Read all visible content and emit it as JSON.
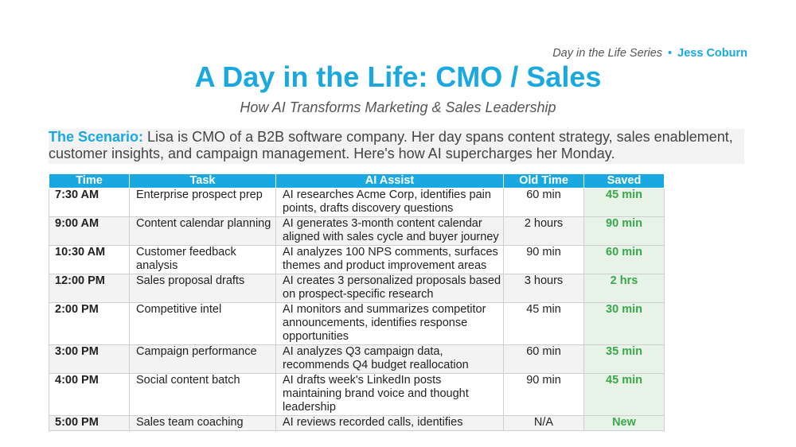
{
  "header": {
    "series": "Day in the Life Series",
    "separator": "•",
    "author": "Jess Coburn",
    "title": "A Day in the Life: CMO / Sales",
    "subtitle": "How AI Transforms Marketing & Sales Leadership"
  },
  "scenario": {
    "label": "The Scenario:",
    "text": "Lisa is CMO of a B2B software company. Her day spans content strategy, sales enablement, customer insights, and campaign management. Here's how AI supercharges her Monday."
  },
  "table": {
    "headers": [
      "Time",
      "Task",
      "AI Assist",
      "Old Time",
      "Saved"
    ],
    "rows": [
      {
        "time": "7:30 AM",
        "task": "Enterprise prospect prep",
        "assist": "AI researches Acme Corp, identifies pain points, drafts discovery questions",
        "old": "60 min",
        "saved": "45 min"
      },
      {
        "time": "9:00 AM",
        "task": "Content calendar planning",
        "assist": "AI generates 3-month content calendar aligned with sales cycle and buyer journey",
        "old": "2 hours",
        "saved": "90 min"
      },
      {
        "time": "10:30 AM",
        "task": "Customer feedback analysis",
        "assist": "AI analyzes 100 NPS comments, surfaces themes and product improvement areas",
        "old": "90 min",
        "saved": "60 min"
      },
      {
        "time": "12:00 PM",
        "task": "Sales proposal drafts",
        "assist": "AI creates 3 personalized proposals based on prospect-specific research",
        "old": "3 hours",
        "saved": "2 hrs"
      },
      {
        "time": "2:00 PM",
        "task": "Competitive intel",
        "assist": "AI monitors and summarizes competitor announcements, identifies response opportunities",
        "old": "45 min",
        "saved": "30 min"
      },
      {
        "time": "3:00 PM",
        "task": "Campaign performance",
        "assist": "AI analyzes Q3 campaign data, recommends Q4 budget reallocation",
        "old": "60 min",
        "saved": "35 min"
      },
      {
        "time": "4:00 PM",
        "task": "Social content batch",
        "assist": "AI drafts week's LinkedIn posts maintaining brand voice and thought leadership",
        "old": "90 min",
        "saved": "45 min"
      },
      {
        "time": "5:00 PM",
        "task": "Sales team coaching",
        "assist": "AI reviews recorded calls, identifies",
        "old": "N/A",
        "saved": "New"
      }
    ]
  },
  "colors": {
    "accent": "#19a8e0",
    "saved_text": "#3aa84a",
    "saved_bg": "#e6f3e6"
  }
}
